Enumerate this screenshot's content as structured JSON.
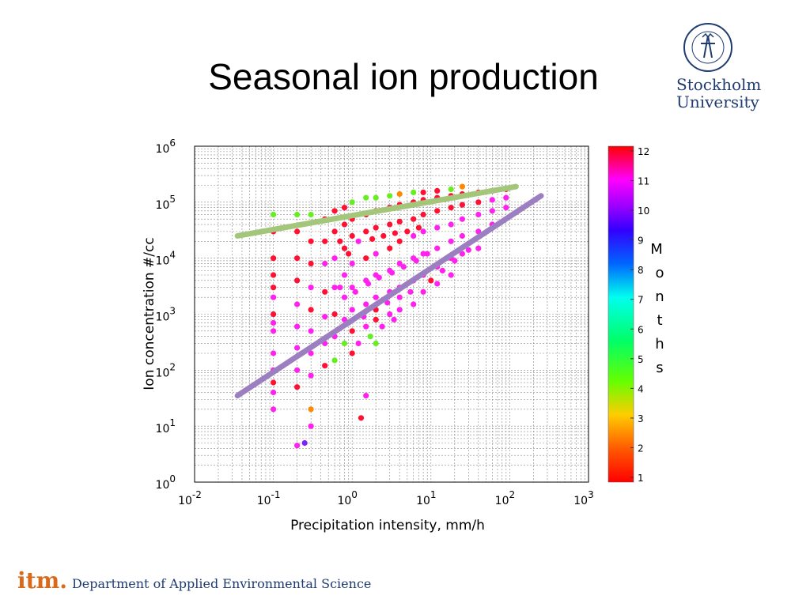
{
  "slide": {
    "title": "Seasonal ion production"
  },
  "logo": {
    "line1": "Stockholm",
    "line2": "University",
    "seal_text": "UNIVERSITET STOCKHOLMS"
  },
  "footer": {
    "brand": "itm.",
    "department": "Department of Applied Environmental Science"
  },
  "colors": {
    "fit_line_upper": "#a3c67a",
    "fit_line_lower": "#9b7fc0",
    "logo_blue": "#1f3b70",
    "footer_orange": "#d96a1a"
  },
  "chart_data": {
    "type": "scatter",
    "xlabel": "Precipitation intensity, mm/h",
    "ylabel": "Ion concentration #/cc",
    "x_scale": "log",
    "y_scale": "log",
    "xlim": [
      0.01,
      1000
    ],
    "ylim": [
      1,
      1000000
    ],
    "x_ticks": [
      {
        "base": "10",
        "exp": "-2"
      },
      {
        "base": "10",
        "exp": "-1"
      },
      {
        "base": "10",
        "exp": "0"
      },
      {
        "base": "10",
        "exp": "1"
      },
      {
        "base": "10",
        "exp": "2"
      },
      {
        "base": "10",
        "exp": "3"
      }
    ],
    "y_ticks": [
      {
        "base": "10",
        "exp": "0"
      },
      {
        "base": "10",
        "exp": "1"
      },
      {
        "base": "10",
        "exp": "2"
      },
      {
        "base": "10",
        "exp": "3"
      },
      {
        "base": "10",
        "exp": "4"
      },
      {
        "base": "10",
        "exp": "5"
      },
      {
        "base": "10",
        "exp": "6"
      }
    ],
    "grid": true,
    "colorbar": {
      "label": "Months",
      "ticks": [
        "1",
        "2",
        "3",
        "4",
        "5",
        "6",
        "7",
        "8",
        "9",
        "10",
        "11",
        "12"
      ],
      "range": [
        1,
        12
      ]
    },
    "fit_lines": [
      {
        "name": "upper",
        "x": [
          0.035,
          120
        ],
        "y": [
          25000,
          190000
        ]
      },
      {
        "name": "lower",
        "x": [
          0.035,
          250
        ],
        "y": [
          35,
          130000
        ]
      }
    ],
    "points": [
      [
        0.1,
        60000,
        4
      ],
      [
        0.1,
        30000,
        12
      ],
      [
        0.1,
        10000,
        12
      ],
      [
        0.1,
        5000,
        12
      ],
      [
        0.1,
        2000,
        11
      ],
      [
        0.1,
        1000,
        12
      ],
      [
        0.1,
        500,
        11
      ],
      [
        0.1,
        200,
        11
      ],
      [
        0.1,
        100,
        11
      ],
      [
        0.1,
        60,
        12
      ],
      [
        0.1,
        40,
        11
      ],
      [
        0.1,
        20,
        11
      ],
      [
        0.1,
        3000,
        12
      ],
      [
        0.1,
        700,
        11
      ],
      [
        0.2,
        60000,
        4
      ],
      [
        0.2,
        30000,
        12
      ],
      [
        0.2,
        10000,
        12
      ],
      [
        0.2,
        4000,
        12
      ],
      [
        0.2,
        1500,
        11
      ],
      [
        0.2,
        600,
        11
      ],
      [
        0.2,
        250,
        11
      ],
      [
        0.2,
        100,
        11
      ],
      [
        0.2,
        50,
        12
      ],
      [
        0.2,
        4.5,
        11
      ],
      [
        0.3,
        60000,
        4
      ],
      [
        0.3,
        20000,
        12
      ],
      [
        0.3,
        8000,
        12
      ],
      [
        0.3,
        3000,
        11
      ],
      [
        0.3,
        1200,
        12
      ],
      [
        0.3,
        500,
        11
      ],
      [
        0.3,
        200,
        11
      ],
      [
        0.3,
        80,
        11
      ],
      [
        0.3,
        20,
        2
      ],
      [
        0.3,
        10,
        11
      ],
      [
        0.25,
        5,
        9
      ],
      [
        0.45,
        50000,
        12
      ],
      [
        0.45,
        20000,
        12
      ],
      [
        0.45,
        8000,
        11
      ],
      [
        0.45,
        2500,
        12
      ],
      [
        0.45,
        900,
        11
      ],
      [
        0.45,
        300,
        11
      ],
      [
        0.45,
        120,
        12
      ],
      [
        0.6,
        70000,
        12
      ],
      [
        0.6,
        30000,
        12
      ],
      [
        0.6,
        10000,
        11
      ],
      [
        0.6,
        3000,
        11
      ],
      [
        0.6,
        1000,
        12
      ],
      [
        0.6,
        400,
        11
      ],
      [
        0.6,
        150,
        4
      ],
      [
        0.8,
        80000,
        12
      ],
      [
        0.8,
        40000,
        12
      ],
      [
        0.8,
        15000,
        12
      ],
      [
        0.8,
        5000,
        11
      ],
      [
        0.8,
        2000,
        11
      ],
      [
        0.8,
        800,
        11
      ],
      [
        0.8,
        300,
        4
      ],
      [
        1.0,
        100000,
        4
      ],
      [
        1.0,
        50000,
        12
      ],
      [
        1.0,
        25000,
        12
      ],
      [
        1.0,
        8000,
        11
      ],
      [
        1.0,
        3000,
        11
      ],
      [
        1.0,
        1200,
        11
      ],
      [
        1.0,
        500,
        12
      ],
      [
        1.0,
        200,
        12
      ],
      [
        1.3,
        14,
        12
      ],
      [
        1.5,
        120000,
        4
      ],
      [
        1.5,
        60000,
        12
      ],
      [
        1.5,
        30000,
        12
      ],
      [
        1.5,
        10000,
        12
      ],
      [
        1.5,
        4000,
        11
      ],
      [
        1.5,
        1500,
        11
      ],
      [
        1.5,
        600,
        11
      ],
      [
        1.5,
        35,
        11
      ],
      [
        2,
        120000,
        4
      ],
      [
        2,
        70000,
        12
      ],
      [
        2,
        35000,
        12
      ],
      [
        2,
        12000,
        11
      ],
      [
        2,
        5000,
        11
      ],
      [
        2,
        2000,
        11
      ],
      [
        2,
        800,
        12
      ],
      [
        2,
        300,
        4
      ],
      [
        3,
        130000,
        4
      ],
      [
        3,
        80000,
        12
      ],
      [
        3,
        40000,
        12
      ],
      [
        3,
        15000,
        12
      ],
      [
        3,
        6000,
        11
      ],
      [
        3,
        2500,
        11
      ],
      [
        3,
        1000,
        11
      ],
      [
        4,
        140000,
        2
      ],
      [
        4,
        90000,
        12
      ],
      [
        4,
        45000,
        12
      ],
      [
        4,
        20000,
        12
      ],
      [
        4,
        8000,
        11
      ],
      [
        4,
        3000,
        11
      ],
      [
        4,
        1200,
        11
      ],
      [
        6,
        150000,
        4
      ],
      [
        6,
        100000,
        12
      ],
      [
        6,
        50000,
        12
      ],
      [
        6,
        25000,
        11
      ],
      [
        6,
        10000,
        11
      ],
      [
        6,
        4000,
        11
      ],
      [
        6,
        1500,
        11
      ],
      [
        8,
        150000,
        12
      ],
      [
        8,
        110000,
        12
      ],
      [
        8,
        60000,
        12
      ],
      [
        8,
        30000,
        11
      ],
      [
        8,
        12000,
        11
      ],
      [
        8,
        5000,
        11
      ],
      [
        8,
        2500,
        11
      ],
      [
        12,
        160000,
        12
      ],
      [
        12,
        120000,
        12
      ],
      [
        12,
        70000,
        12
      ],
      [
        12,
        35000,
        11
      ],
      [
        12,
        15000,
        11
      ],
      [
        12,
        7000,
        11
      ],
      [
        12,
        3500,
        11
      ],
      [
        18,
        170000,
        4
      ],
      [
        18,
        130000,
        12
      ],
      [
        18,
        80000,
        12
      ],
      [
        18,
        40000,
        11
      ],
      [
        18,
        20000,
        11
      ],
      [
        18,
        10000,
        11
      ],
      [
        18,
        5000,
        11
      ],
      [
        25,
        190000,
        2
      ],
      [
        25,
        140000,
        12
      ],
      [
        25,
        90000,
        12
      ],
      [
        25,
        50000,
        11
      ],
      [
        25,
        25000,
        11
      ],
      [
        25,
        12000,
        11
      ],
      [
        40,
        150000,
        12
      ],
      [
        40,
        100000,
        12
      ],
      [
        40,
        60000,
        11
      ],
      [
        40,
        30000,
        11
      ],
      [
        40,
        15000,
        11
      ],
      [
        60,
        160000,
        12
      ],
      [
        60,
        110000,
        11
      ],
      [
        60,
        70000,
        11
      ],
      [
        60,
        40000,
        11
      ],
      [
        90,
        170000,
        12
      ],
      [
        90,
        120000,
        11
      ],
      [
        90,
        80000,
        11
      ],
      [
        0.7,
        20000,
        12
      ],
      [
        0.9,
        12000,
        12
      ],
      [
        1.2,
        20000,
        11
      ],
      [
        1.8,
        22000,
        12
      ],
      [
        2.5,
        25000,
        12
      ],
      [
        3.5,
        28000,
        12
      ],
      [
        5,
        30000,
        12
      ],
      [
        7,
        35000,
        12
      ],
      [
        0.7,
        3000,
        11
      ],
      [
        1.1,
        2500,
        11
      ],
      [
        1.6,
        3500,
        11
      ],
      [
        2.2,
        4500,
        11
      ],
      [
        3.2,
        5500,
        11
      ],
      [
        4.5,
        7000,
        11
      ],
      [
        6.5,
        9000,
        11
      ],
      [
        9,
        12000,
        11
      ],
      [
        0.9,
        700,
        11
      ],
      [
        1.4,
        900,
        11
      ],
      [
        2.0,
        1200,
        12
      ],
      [
        2.8,
        1600,
        11
      ],
      [
        4.0,
        2000,
        11
      ],
      [
        5.5,
        2500,
        11
      ],
      [
        1.2,
        300,
        11
      ],
      [
        1.7,
        400,
        4
      ],
      [
        2.4,
        600,
        11
      ],
      [
        3.4,
        800,
        11
      ],
      [
        10,
        4000,
        12
      ],
      [
        14,
        6000,
        11
      ],
      [
        20,
        9000,
        11
      ],
      [
        30,
        14000,
        11
      ]
    ]
  }
}
